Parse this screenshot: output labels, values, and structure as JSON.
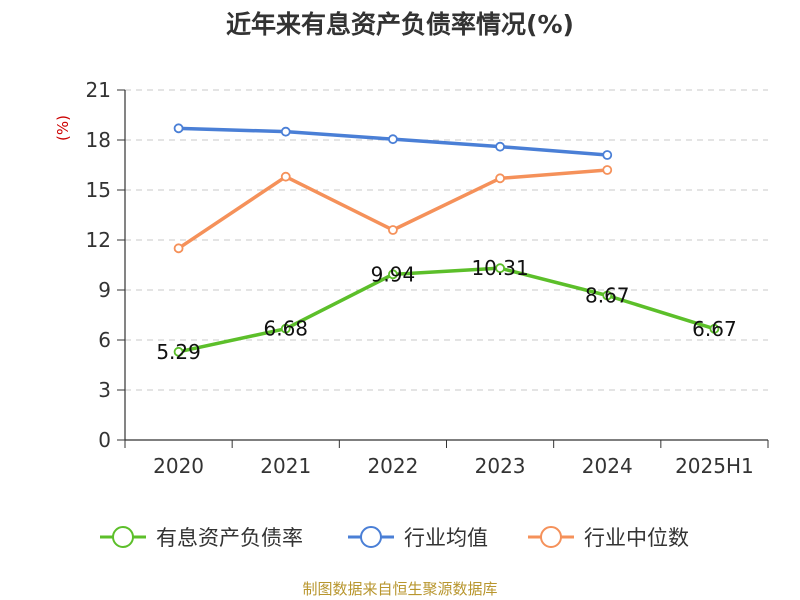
{
  "chart_data": {
    "type": "line",
    "title": "近年来有息资产负债率情况(%)",
    "ylabel": "(%)",
    "xlabel": "",
    "categories": [
      "2020",
      "2021",
      "2022",
      "2023",
      "2024",
      "2025H1"
    ],
    "yticks": [
      "0",
      "3",
      "6",
      "9",
      "12",
      "15",
      "18",
      "21"
    ],
    "ylim": [
      0,
      21
    ],
    "grid": true,
    "legend_position": "bottom",
    "series": [
      {
        "name": "有息资产负债率",
        "color": "#5cbf2a",
        "values": [
          5.29,
          6.68,
          9.94,
          10.31,
          8.67,
          6.67
        ],
        "labels": [
          "5.29",
          "6.68",
          "9.94",
          "10.31",
          "8.67",
          "6.67"
        ]
      },
      {
        "name": "行业均值",
        "color": "#4a7fd6",
        "values": [
          18.7,
          18.5,
          18.05,
          17.6,
          17.1,
          null
        ]
      },
      {
        "name": "行业中位数",
        "color": "#f5915a",
        "values": [
          11.5,
          15.8,
          12.6,
          15.7,
          16.2,
          null
        ]
      }
    ],
    "source": "制图数据来自恒生聚源数据库"
  }
}
